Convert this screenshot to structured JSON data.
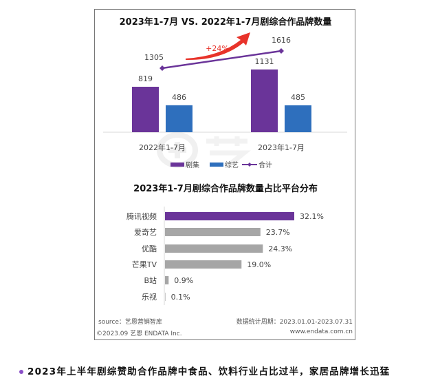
{
  "colors": {
    "drama": "#6a3499",
    "variety": "#2e6fbd",
    "total": "#6a3499",
    "gray": "#a6a6a6",
    "arrow": "#e8332a"
  },
  "chart_data": [
    {
      "type": "bar",
      "title": "2023年1-7月 VS. 2022年1-7月剧综合作品牌数量",
      "categories": [
        "2022年1-7月",
        "2023年1-7月"
      ],
      "series": [
        {
          "name": "剧集",
          "values": [
            819,
            1131
          ]
        },
        {
          "name": "综艺",
          "values": [
            486,
            485
          ]
        },
        {
          "name": "合计",
          "type": "line",
          "values": [
            1305,
            1616
          ]
        }
      ],
      "annotation": "+24%",
      "legend_position": "bottom"
    },
    {
      "type": "bar",
      "orientation": "horizontal",
      "title": "2023年1-7月剧综合作品牌数量占比平台分布",
      "categories": [
        "腾讯视频",
        "爱奇艺",
        "优酷",
        "芒果TV",
        "B站",
        "乐视"
      ],
      "values": [
        32.1,
        23.7,
        24.3,
        19.0,
        0.9,
        0.1
      ],
      "labels": [
        "32.1%",
        "23.7%",
        "24.3%",
        "19.0%",
        "0.9%",
        "0.1%"
      ],
      "highlight_index": 0
    }
  ],
  "footer": {
    "source": "source：艺恩营销智库",
    "period": "数据统计周期：2023.01.01-2023.07.31",
    "copyright": "©2023.09 艺恩 ENDATA Inc.",
    "website": "www.endata.com.cn"
  },
  "watermark": "艺恩 endata",
  "bullet_text": "2023年上半年剧综赞助合作品牌中食品、饮料行业占比过半，家居品牌增长迅猛"
}
